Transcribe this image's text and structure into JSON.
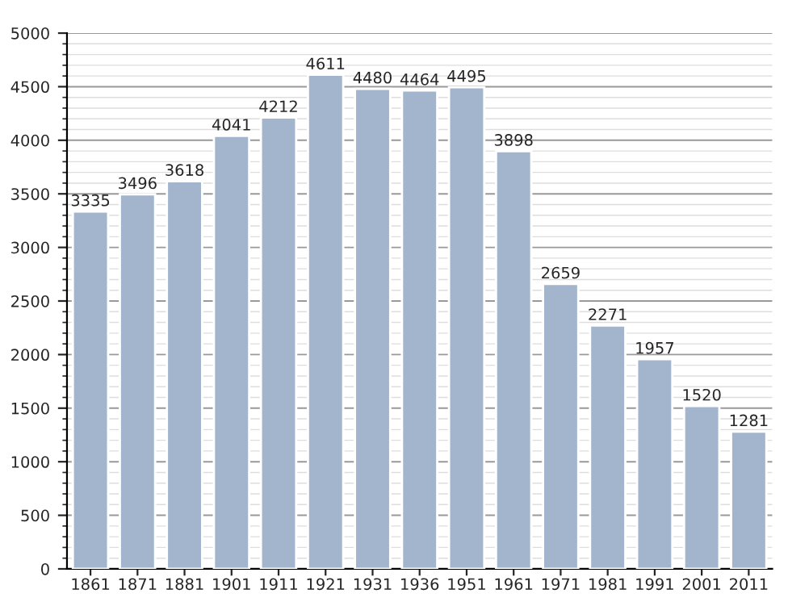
{
  "chart_data": {
    "type": "bar",
    "categories": [
      "1861",
      "1871",
      "1881",
      "1901",
      "1911",
      "1921",
      "1931",
      "1936",
      "1951",
      "1961",
      "1971",
      "1981",
      "1991",
      "2001",
      "2011"
    ],
    "values": [
      3335,
      3496,
      3618,
      4041,
      4212,
      4611,
      4480,
      4464,
      4495,
      3898,
      2659,
      2271,
      1957,
      1520,
      1281
    ],
    "color": "#a2b5cd",
    "ylim": [
      0,
      5000
    ],
    "yticks": [
      0,
      500,
      1000,
      1500,
      2000,
      2500,
      3000,
      3500,
      4000,
      4500,
      5000
    ],
    "grid": "y",
    "data_labels": true
  }
}
